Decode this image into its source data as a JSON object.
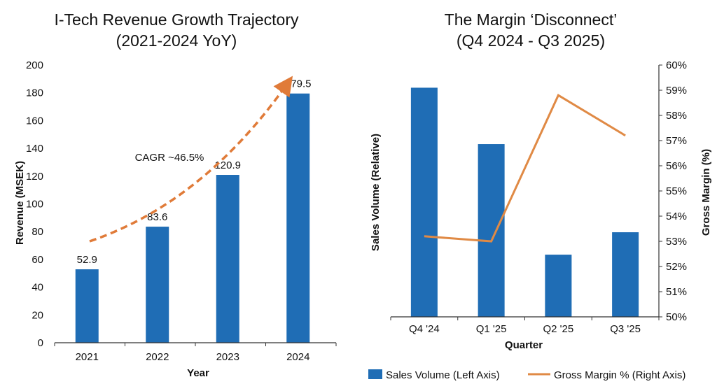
{
  "colors": {
    "bar": "#1f6db5",
    "line": "#e08a45",
    "arrow": "#e07b39"
  },
  "legend": {
    "bar_label": "Sales Volume (Left Axis)",
    "line_label": "Gross Margin % (Right Axis)"
  },
  "chart_data": [
    {
      "type": "bar",
      "title_line1": "I-Tech Revenue Growth Trajectory",
      "title_line2": "(2021-2024 YoY)",
      "xlabel": "Year",
      "ylabel": "Revenue (MSEK)",
      "categories": [
        "2021",
        "2022",
        "2023",
        "2024"
      ],
      "values": [
        52.9,
        83.6,
        120.9,
        179.5
      ],
      "value_labels": [
        "52.9",
        "83.6",
        "120.9",
        "179.5"
      ],
      "ylim": [
        0,
        200
      ],
      "yticks": [
        "0",
        "20",
        "40",
        "60",
        "80",
        "100",
        "120",
        "140",
        "160",
        "180",
        "200"
      ],
      "annotation": "CAGR ~46.5%",
      "grid": false
    },
    {
      "type": "bar+line",
      "title_line1": "The Margin ‘Disconnect’",
      "title_line2": "(Q4 2024 - Q3 2025)",
      "xlabel": "Quarter",
      "ylabel_left": "Sales Volume (Relative)",
      "ylabel_right": "Gross Margin (%)",
      "categories": [
        "Q4 '24",
        "Q1 '25",
        "Q2 '25",
        "Q3 '25"
      ],
      "series": [
        {
          "name": "Sales Volume (Left Axis)",
          "type": "bar",
          "axis": "left",
          "values": [
            91,
            68.6,
            24.7,
            33.6
          ]
        },
        {
          "name": "Gross Margin % (Right Axis)",
          "type": "line",
          "axis": "right",
          "values": [
            53.2,
            53.0,
            58.8,
            57.2
          ]
        }
      ],
      "ylim_left": [
        0,
        100
      ],
      "ylim_right": [
        50,
        60
      ],
      "yticks_right": [
        "50%",
        "51%",
        "52%",
        "53%",
        "54%",
        "55%",
        "56%",
        "57%",
        "58%",
        "59%",
        "60%"
      ],
      "legend_position": "bottom",
      "grid": false
    }
  ]
}
